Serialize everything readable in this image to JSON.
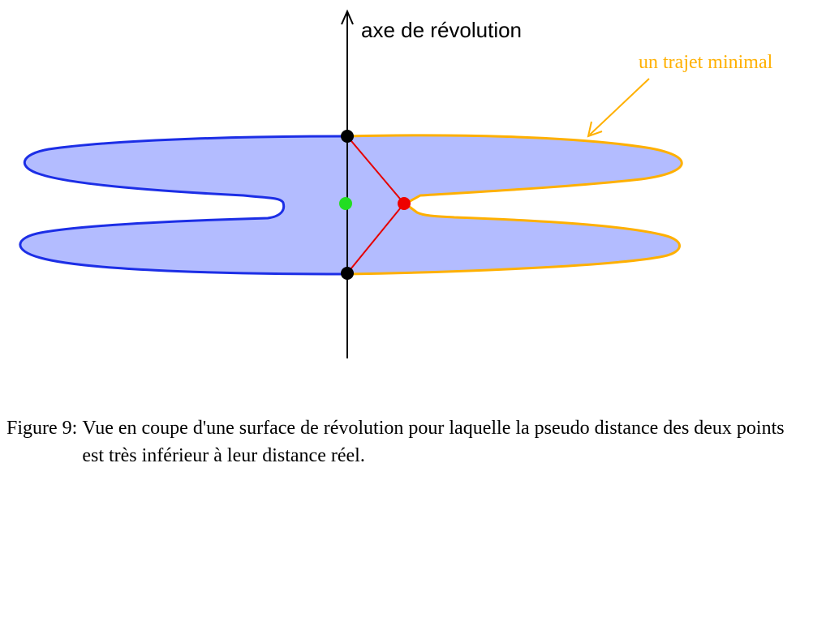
{
  "diagram": {
    "axis_label": "axe de révolution",
    "path_label": "un trajet minimal",
    "colors": {
      "surface_fill": "#b3bcff",
      "left_profile": "#1c2ee6",
      "right_profile": "#ffb000",
      "segments": "#e60000",
      "axis": "#000000",
      "endpoint": "#000000",
      "midpoint": "#22dd22",
      "junction": "#ee0000"
    },
    "points": [
      {
        "name": "top-point",
        "color": "#000000"
      },
      {
        "name": "bottom-point",
        "color": "#000000"
      },
      {
        "name": "midpoint",
        "color": "#22dd22"
      },
      {
        "name": "junction-point",
        "color": "#ee0000"
      }
    ]
  },
  "caption": {
    "label": "Figure 9:",
    "text": "Vue en coupe d'une surface de révolution pour laquelle la pseudo distance des deux points est très inférieur à leur distance réel."
  }
}
